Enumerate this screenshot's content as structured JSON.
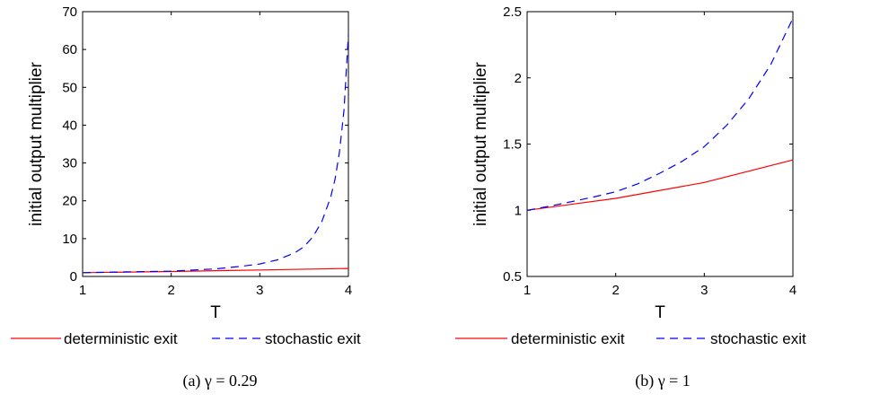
{
  "chart_data": [
    {
      "type": "line",
      "xlabel": "T",
      "ylabel": "initial output multiplier",
      "xlim": [
        1,
        4
      ],
      "ylim": [
        0,
        70
      ],
      "xticks": [
        1,
        2,
        3,
        4
      ],
      "yticks": [
        0,
        10,
        20,
        30,
        40,
        50,
        60,
        70
      ],
      "grid": false,
      "legend_placement": "bottom",
      "caption": "(a) γ = 0.29",
      "series": [
        {
          "name": "deterministic exit",
          "color": "#ff0000",
          "style": "solid",
          "x": [
            1,
            2,
            3,
            4
          ],
          "y": [
            1.0,
            1.3,
            1.7,
            2.1
          ]
        },
        {
          "name": "stochastic exit",
          "color": "#0000ff",
          "style": "dashed",
          "x": [
            1.0,
            1.5,
            2.0,
            2.5,
            2.8,
            3.0,
            3.2,
            3.4,
            3.5,
            3.6,
            3.7,
            3.8,
            3.85,
            3.9,
            3.95,
            4.0
          ],
          "y": [
            1.0,
            1.2,
            1.4,
            2.0,
            2.7,
            3.3,
            4.4,
            6.3,
            7.9,
            10.5,
            14.5,
            21.0,
            25.8,
            33.0,
            44.0,
            64.0
          ]
        }
      ]
    },
    {
      "type": "line",
      "xlabel": "T",
      "ylabel": "initial output multiplier",
      "xlim": [
        1,
        4
      ],
      "ylim": [
        0.5,
        2.5
      ],
      "xticks": [
        1,
        2,
        3,
        4
      ],
      "yticks": [
        0.5,
        1,
        1.5,
        2,
        2.5
      ],
      "grid": false,
      "legend_placement": "bottom",
      "caption": "(b) γ = 1",
      "series": [
        {
          "name": "deterministic exit",
          "color": "#ff0000",
          "style": "solid",
          "x": [
            1,
            2,
            3,
            4
          ],
          "y": [
            1.0,
            1.09,
            1.21,
            1.38
          ]
        },
        {
          "name": "stochastic exit",
          "color": "#0000ff",
          "style": "dashed",
          "x": [
            1.0,
            1.25,
            1.5,
            1.75,
            2.0,
            2.25,
            2.5,
            2.75,
            3.0,
            3.25,
            3.5,
            3.75,
            4.0
          ],
          "y": [
            1.0,
            1.03,
            1.065,
            1.1,
            1.14,
            1.2,
            1.28,
            1.37,
            1.48,
            1.64,
            1.84,
            2.1,
            2.45
          ]
        }
      ]
    }
  ]
}
